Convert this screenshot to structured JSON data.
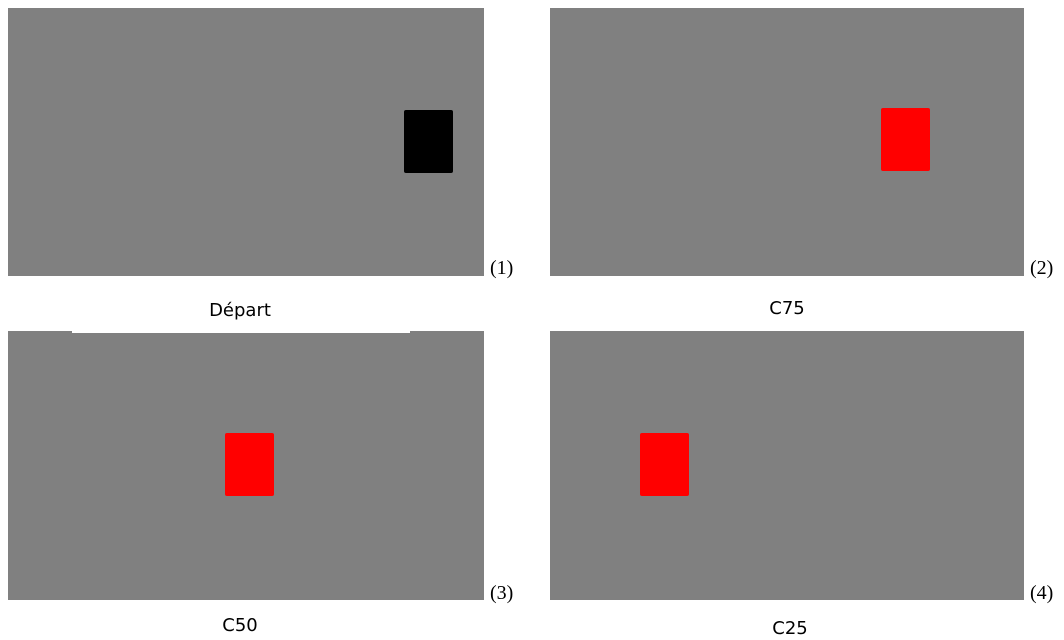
{
  "panels": [
    {
      "number": "(1)",
      "caption": "Départ",
      "rect_color": "#000000",
      "background": "#808080"
    },
    {
      "number": "(2)",
      "caption": "C75",
      "rect_color": "#ff0000",
      "background": "#808080"
    },
    {
      "number": "(3)",
      "caption": "C50",
      "rect_color": "#ff0000",
      "background": "#808080"
    },
    {
      "number": "(4)",
      "caption": "C25",
      "rect_color": "#ff0000",
      "background": "#808080"
    }
  ]
}
